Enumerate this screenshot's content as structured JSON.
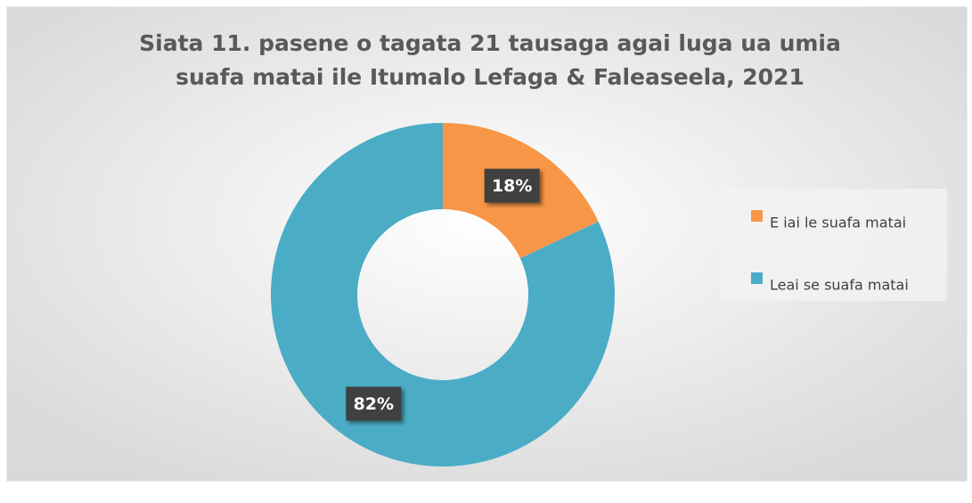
{
  "chart_data": {
    "type": "donut",
    "title": "Siata 11. pasene o tagata 21 tausaga agai luga ua umia suafa matai ile Itumalo Lefaga & Faleaseela, 2021",
    "categories": [
      "E iai le suafa matai",
      "Leai se suafa matai"
    ],
    "values": [
      18,
      82
    ],
    "value_labels": [
      "18%",
      "82%"
    ],
    "colors": [
      "#f79646",
      "#4bacc6"
    ],
    "legend": "right"
  }
}
